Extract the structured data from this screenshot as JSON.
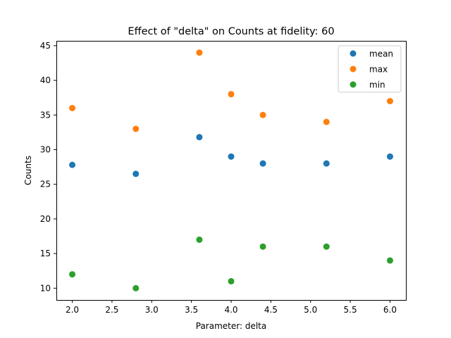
{
  "chart_data": {
    "type": "scatter",
    "title": "Effect of \"delta\" on Counts at fidelity: 60",
    "xlabel": "Parameter: delta",
    "ylabel": "Counts",
    "xlim": [
      1.8,
      6.2
    ],
    "ylim": [
      8.3,
      45.7
    ],
    "xticks": [
      2.0,
      2.5,
      3.0,
      3.5,
      4.0,
      4.5,
      5.0,
      5.5,
      6.0
    ],
    "xtick_labels": [
      "2.0",
      "2.5",
      "3.0",
      "3.5",
      "4.0",
      "4.5",
      "5.0",
      "5.5",
      "6.0"
    ],
    "yticks": [
      10,
      15,
      20,
      25,
      30,
      35,
      40,
      45
    ],
    "ytick_labels": [
      "10",
      "15",
      "20",
      "25",
      "30",
      "35",
      "40",
      "45"
    ],
    "grid": false,
    "legend_position": "top-right",
    "x": [
      2.0,
      2.8,
      3.6,
      4.0,
      4.4,
      5.2,
      6.0
    ],
    "series": [
      {
        "name": "mean",
        "color": "#1f77b4",
        "values": [
          27.8,
          26.5,
          31.8,
          29.0,
          28.0,
          28.0,
          29.0
        ]
      },
      {
        "name": "max",
        "color": "#ff7f0e",
        "values": [
          36,
          33,
          44,
          38,
          35,
          34,
          37
        ]
      },
      {
        "name": "min",
        "color": "#2ca02c",
        "values": [
          12,
          10,
          17,
          11,
          16,
          16,
          14
        ]
      }
    ]
  }
}
